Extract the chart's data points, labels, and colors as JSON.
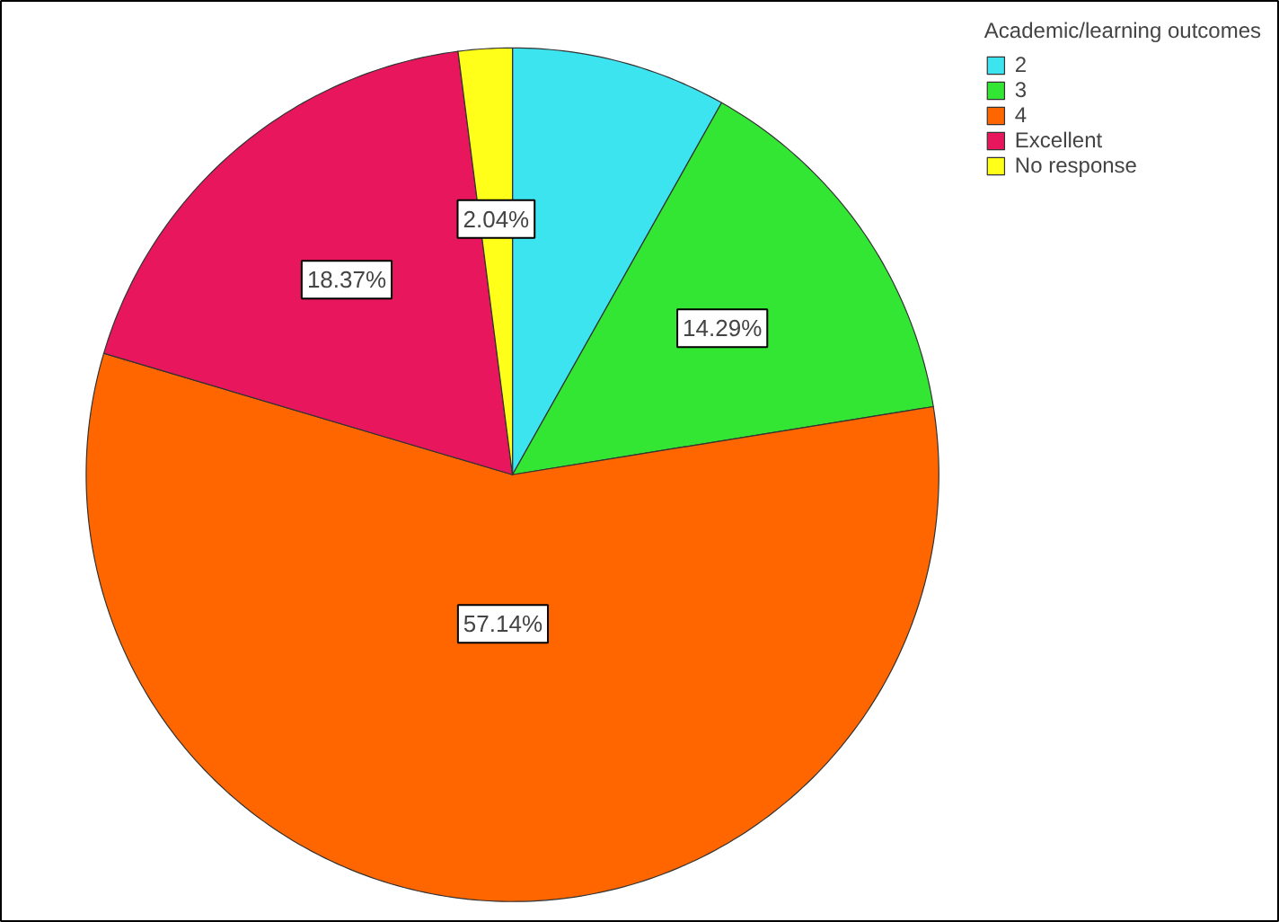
{
  "chart_data": {
    "type": "pie",
    "legend_title": "Academic/learning outcomes",
    "legend": "top right",
    "categories": [
      "2",
      "3",
      "4",
      "Excellent",
      "No response"
    ],
    "values": [
      8.16,
      14.29,
      57.14,
      18.37,
      2.04
    ],
    "colors": [
      "#3ce4f0",
      "#33e633",
      "#ff6600",
      "#e8175d",
      "#ffff1a"
    ],
    "value_labels": [
      null,
      "14.29%",
      "57.14%",
      "18.37%",
      "2.04%"
    ]
  }
}
